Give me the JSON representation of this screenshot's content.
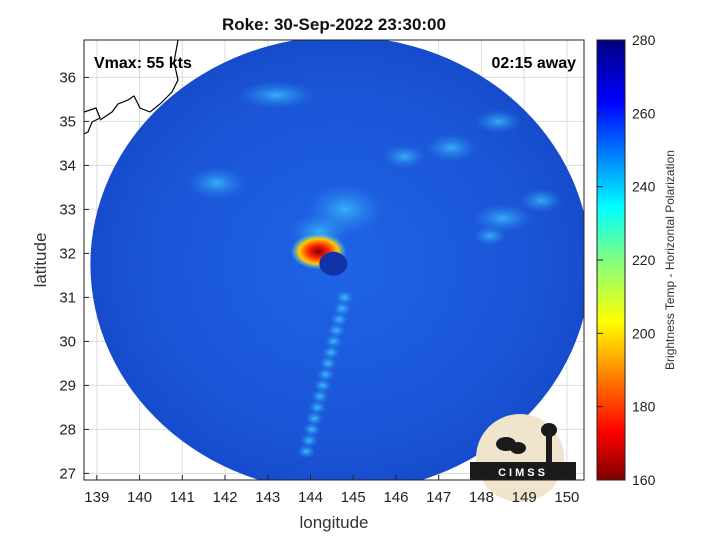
{
  "chart_data": {
    "type": "heatmap",
    "title": "Roke: 30-Sep-2022 23:30:00",
    "xlabel": "longitude",
    "ylabel": "latitude",
    "xlim": [
      138.7,
      150.4
    ],
    "ylim": [
      26.85,
      36.85
    ],
    "xticks": [
      139,
      140,
      141,
      142,
      143,
      144,
      145,
      146,
      147,
      148,
      149,
      150
    ],
    "yticks": [
      27,
      28,
      29,
      30,
      31,
      32,
      33,
      34,
      35,
      36
    ],
    "grid": true,
    "colorbar": {
      "label": "Brightness Temp - Horizontal Polarization",
      "range": [
        160,
        280
      ],
      "ticks": [
        160,
        180,
        200,
        220,
        240,
        260,
        280
      ],
      "colormap": "jet"
    },
    "annotations": {
      "vmax": "Vmax: 55 kts",
      "time_away": "02:15 away"
    },
    "storm_center": {
      "lon": 144.3,
      "lat": 31.9
    },
    "features": [
      {
        "name": "eyewall minimum",
        "lon": 144.0,
        "lat": 32.0,
        "value": 175
      },
      {
        "name": "rainband",
        "lon_start": 144.8,
        "lat_start": 31.0,
        "lon_end": 143.9,
        "lat_end": 27.5,
        "value": 240
      }
    ],
    "logo_text": "CIMSS"
  },
  "colors": {
    "background_field": "#1a5ad8",
    "cold_min": "#7f0000",
    "warm_max": "#00007f"
  }
}
